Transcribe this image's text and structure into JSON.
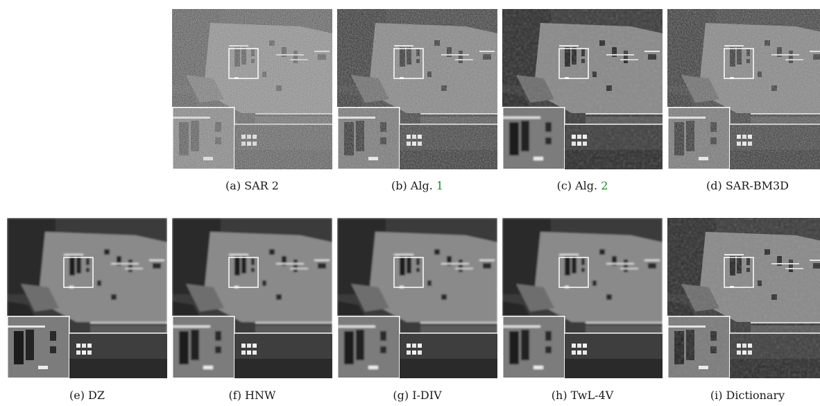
{
  "figure": {
    "panels": [
      {
        "id": "a",
        "caption": "(a) SAR 2",
        "ref": ""
      },
      {
        "id": "b",
        "caption": "(b) Alg. ",
        "ref": "1"
      },
      {
        "id": "c",
        "caption": "(c) Alg. ",
        "ref": "2"
      },
      {
        "id": "d",
        "caption": "(d) SAR-BM3D",
        "ref": ""
      },
      {
        "id": "e",
        "caption": "(e) DZ",
        "ref": ""
      },
      {
        "id": "f",
        "caption": "(f) HNW",
        "ref": ""
      },
      {
        "id": "g",
        "caption": "(g) I-DIV",
        "ref": ""
      },
      {
        "id": "h",
        "caption": "(h) TwL-4V",
        "ref": ""
      },
      {
        "id": "i",
        "caption": "(i) Dictionary",
        "ref": ""
      }
    ],
    "colors": {
      "reference_link": "#1a8f1a",
      "frame": "#ffffff"
    }
  }
}
